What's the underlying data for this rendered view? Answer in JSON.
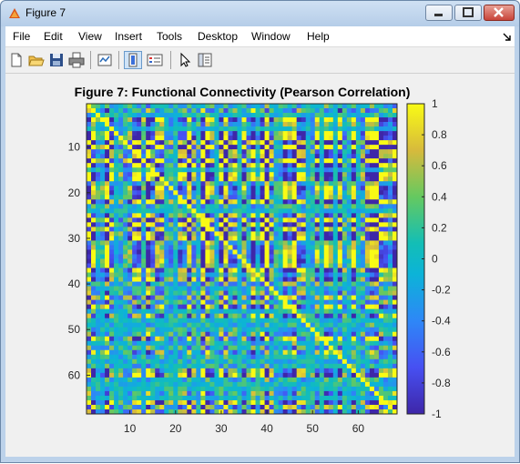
{
  "window": {
    "title": "Figure 7",
    "icons": {
      "app": "matlab-figure-icon",
      "minimize": "minimize-icon",
      "maximize": "maximize-icon",
      "close": "close-icon"
    }
  },
  "menu": {
    "items": [
      "File",
      "Edit",
      "View",
      "Insert",
      "Tools",
      "Desktop",
      "Window",
      "Help"
    ],
    "overflow_icon": "dock-arrow-icon"
  },
  "toolbar": {
    "buttons": [
      "new-figure-icon",
      "open-file-icon",
      "save-icon",
      "print-icon",
      "link-plot-icon",
      "colorbar-toggle-icon",
      "legend-toggle-icon",
      "pointer-icon",
      "property-editor-icon"
    ]
  },
  "chart_data": {
    "type": "heatmap",
    "title": "Figure 7: Functional Connectivity (Pearson Correlation)",
    "xlabel": "",
    "ylabel": "",
    "rows": 68,
    "cols": 68,
    "xticks": [
      10,
      20,
      30,
      40,
      50,
      60
    ],
    "yticks": [
      10,
      20,
      30,
      40,
      50,
      60
    ],
    "colormap": "parula",
    "clim": [
      -1,
      1
    ],
    "colorbar_ticks": [
      1,
      0.8,
      0.6,
      0.4,
      0.2,
      0,
      -0.2,
      -0.4,
      -0.6,
      -0.8,
      -1
    ],
    "colorbar_tick_labels": [
      "1",
      "0.8",
      "0.6",
      "0.4",
      "0.2",
      "0",
      "-0.2",
      "-0.4",
      "-0.6",
      "-0.8",
      "-1"
    ],
    "values_note": "",
    "seed": 7
  }
}
